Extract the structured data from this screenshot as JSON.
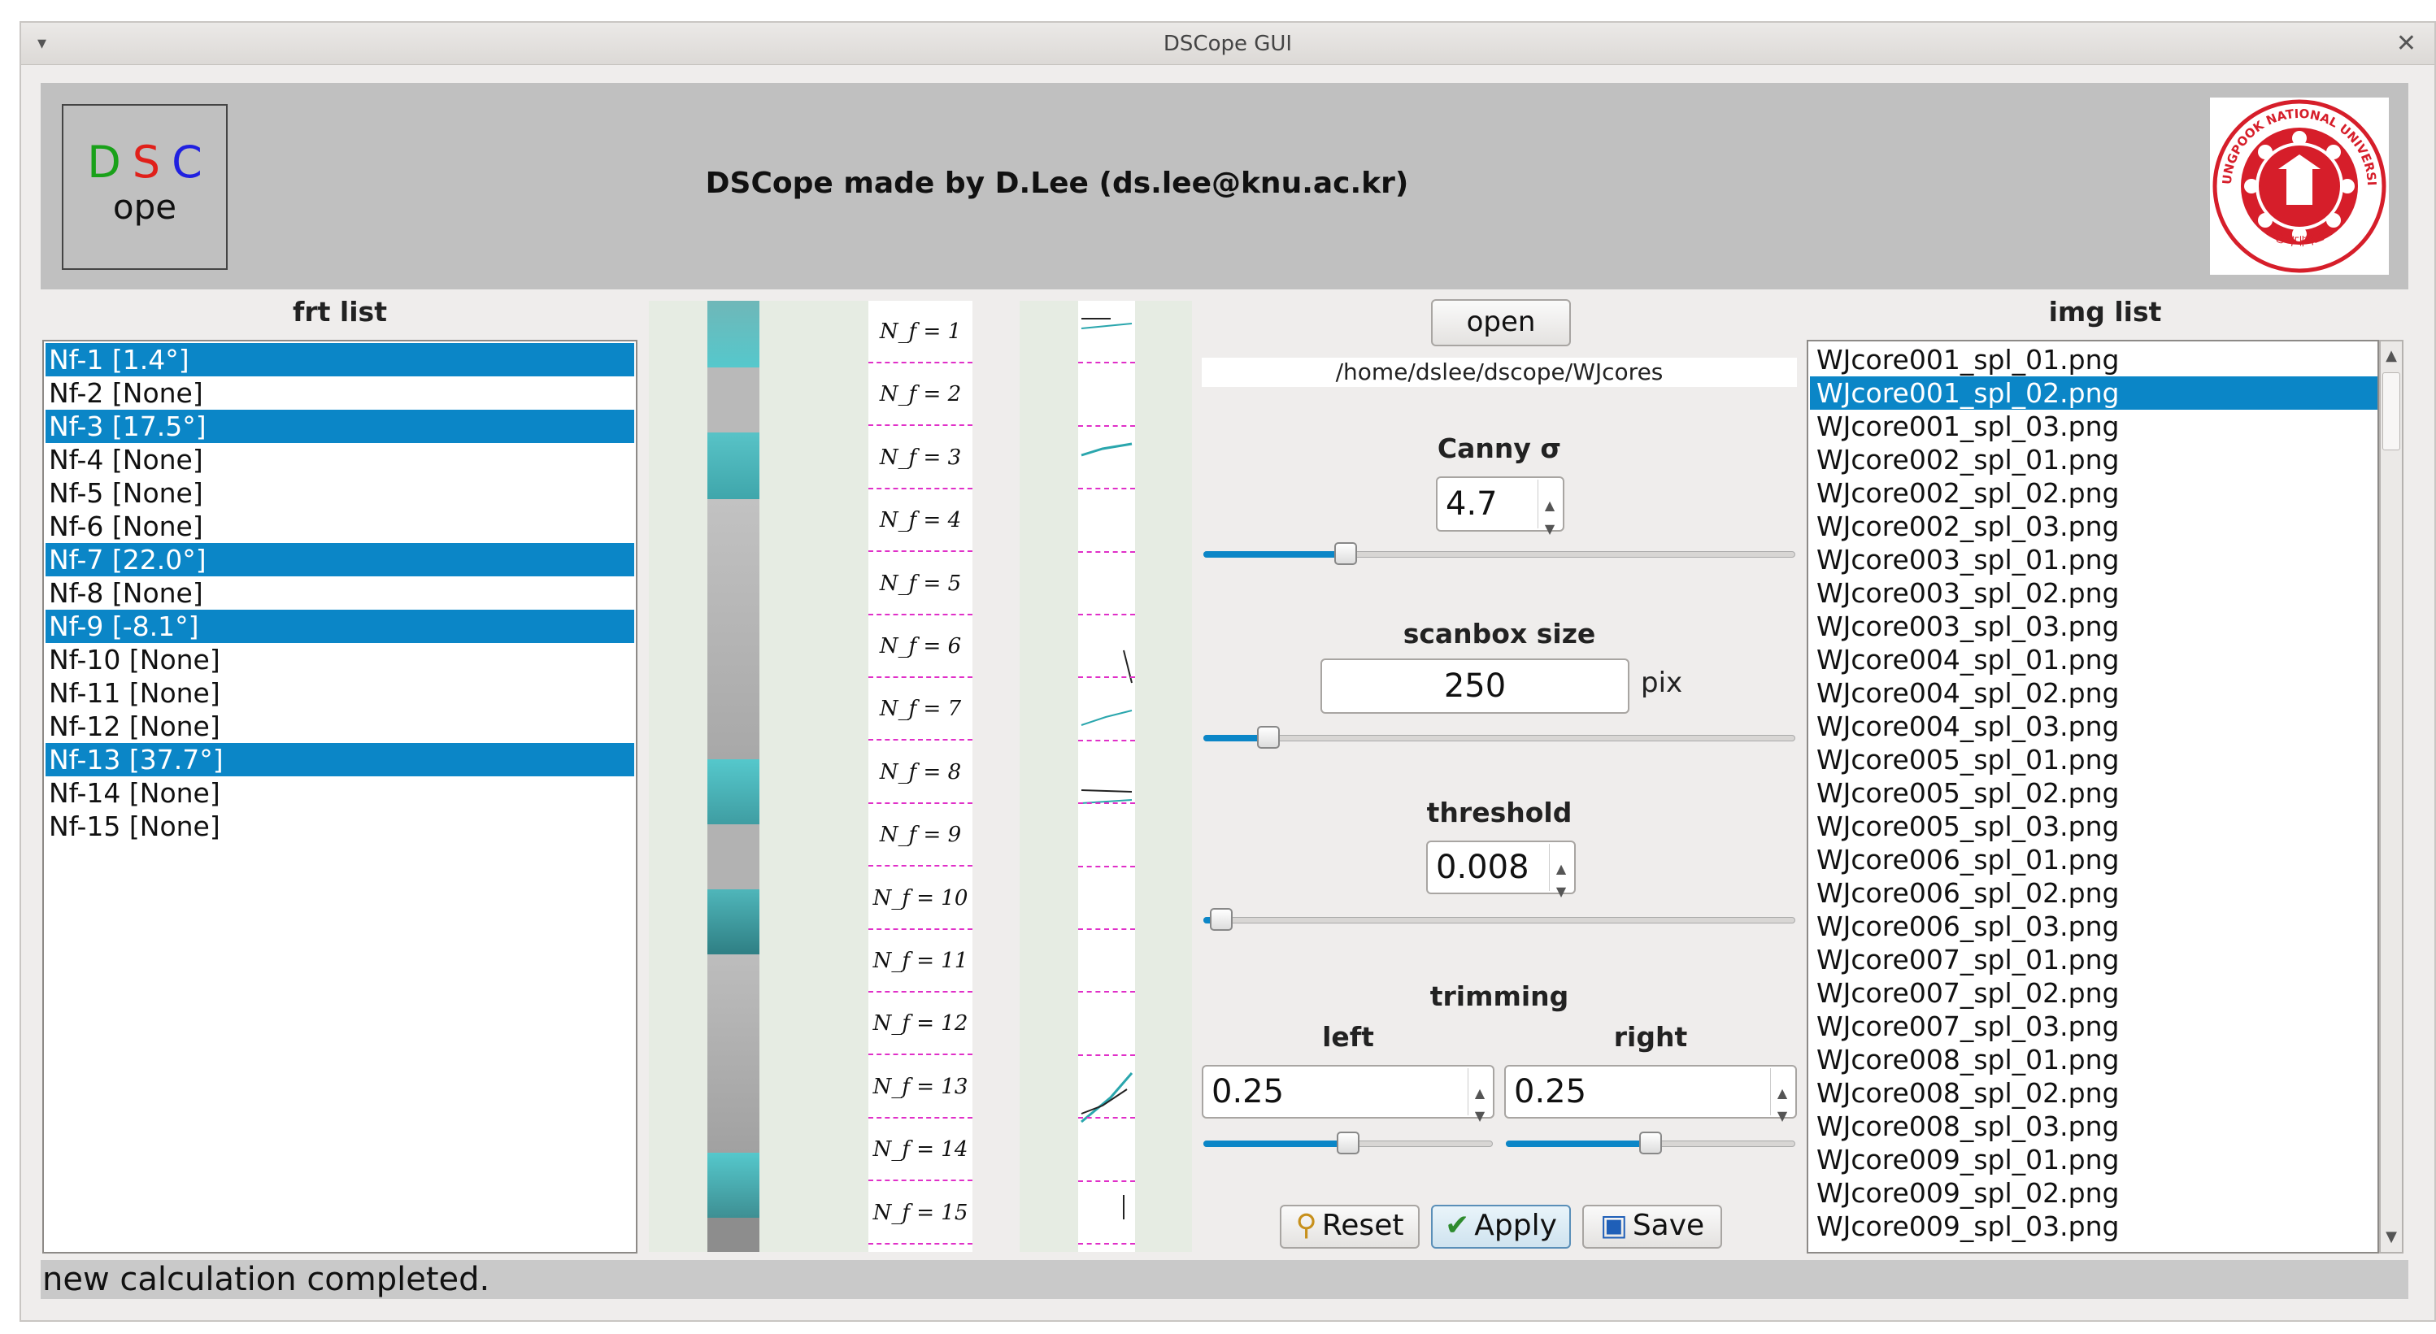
{
  "window": {
    "title": "DSCope GUI"
  },
  "header": {
    "logo": {
      "d": "D",
      "s": "S",
      "c": "C",
      "ope": "ope"
    },
    "title": "DSCope made by D.Lee (ds.lee@knu.ac.kr)",
    "emblem": {
      "top_text": "KYUNGPOOK NATIONAL UNIVERSITY",
      "bottom_text": "경북대학교"
    }
  },
  "frt_list": {
    "label": "frt list",
    "items": [
      {
        "text": "Nf-1 [1.4°]",
        "selected": true
      },
      {
        "text": "Nf-2 [None]",
        "selected": false
      },
      {
        "text": "Nf-3 [17.5°]",
        "selected": true
      },
      {
        "text": "Nf-4 [None]",
        "selected": false
      },
      {
        "text": "Nf-5 [None]",
        "selected": false
      },
      {
        "text": "Nf-6 [None]",
        "selected": false
      },
      {
        "text": "Nf-7 [22.0°]",
        "selected": true
      },
      {
        "text": "Nf-8 [None]",
        "selected": false
      },
      {
        "text": "Nf-9 [-8.1°]",
        "selected": true
      },
      {
        "text": "Nf-10 [None]",
        "selected": false
      },
      {
        "text": "Nf-11 [None]",
        "selected": false
      },
      {
        "text": "Nf-12 [None]",
        "selected": false
      },
      {
        "text": "Nf-13 [37.7°]",
        "selected": true
      },
      {
        "text": "Nf-14 [None]",
        "selected": false
      },
      {
        "text": "Nf-15 [None]",
        "selected": false
      }
    ]
  },
  "nf_labels": [
    "N_f = 1",
    "N_f = 2",
    "N_f = 3",
    "N_f = 4",
    "N_f = 5",
    "N_f = 6",
    "N_f = 7",
    "N_f = 8",
    "N_f = 9",
    "N_f = 10",
    "N_f = 11",
    "N_f = 12",
    "N_f = 13",
    "N_f = 14",
    "N_f = 15"
  ],
  "controls": {
    "open_label": "open",
    "path": "/home/dslee/dscope/WJcores",
    "canny": {
      "label": "Canny σ",
      "value": "4.7",
      "slider_fraction": 0.24
    },
    "scanbox": {
      "label": "scanbox size",
      "value": "250",
      "unit": "pix",
      "slider_fraction": 0.11
    },
    "threshold": {
      "label": "threshold",
      "value": "0.008",
      "slider_fraction": 0.03
    },
    "trimming": {
      "label": "trimming",
      "left_label": "left",
      "left_value": "0.25",
      "left_slider_fraction": 0.5,
      "right_label": "right",
      "right_value": "0.25",
      "right_slider_fraction": 0.5
    },
    "reset_label": "Reset",
    "apply_label": "Apply",
    "save_label": "Save"
  },
  "img_list": {
    "label": "img list",
    "selected_index": 1,
    "items": [
      "WJcore001_spl_01.png",
      "WJcore001_spl_02.png",
      "WJcore001_spl_03.png",
      "WJcore002_spl_01.png",
      "WJcore002_spl_02.png",
      "WJcore002_spl_03.png",
      "WJcore003_spl_01.png",
      "WJcore003_spl_02.png",
      "WJcore003_spl_03.png",
      "WJcore004_spl_01.png",
      "WJcore004_spl_02.png",
      "WJcore004_spl_03.png",
      "WJcore005_spl_01.png",
      "WJcore005_spl_02.png",
      "WJcore005_spl_03.png",
      "WJcore006_spl_01.png",
      "WJcore006_spl_02.png",
      "WJcore006_spl_03.png",
      "WJcore007_spl_01.png",
      "WJcore007_spl_02.png",
      "WJcore007_spl_03.png",
      "WJcore008_spl_01.png",
      "WJcore008_spl_02.png",
      "WJcore008_spl_03.png",
      "WJcore009_spl_01.png",
      "WJcore009_spl_02.png",
      "WJcore009_spl_03.png"
    ]
  },
  "status": {
    "text": "new calculation completed."
  },
  "colors": {
    "selection": "#0b86c7",
    "header_bg": "#c0c0c0",
    "window_bg": "#efedec",
    "highlight_cyan": "#55c8cc",
    "marker_magenta": "#e030c8"
  }
}
